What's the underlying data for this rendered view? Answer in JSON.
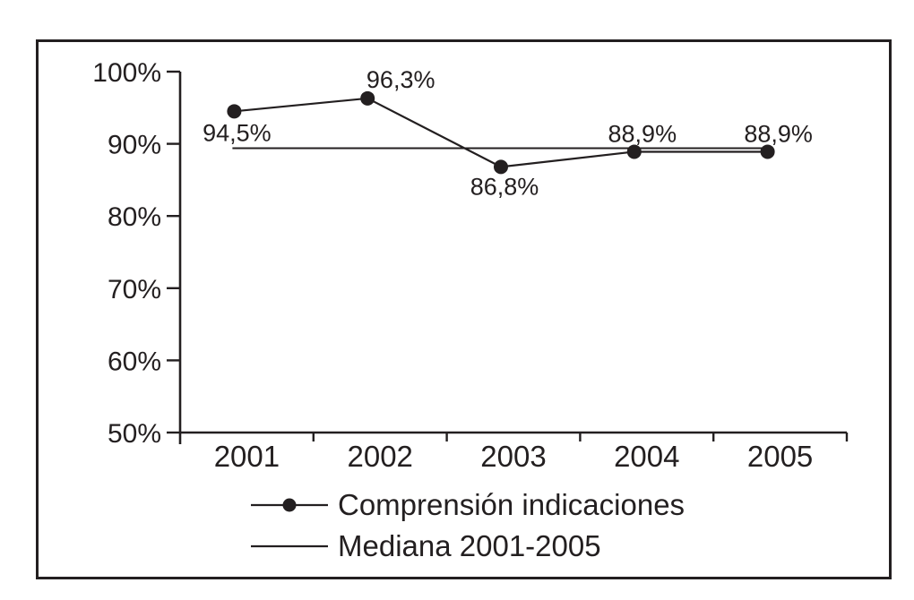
{
  "figure": {
    "background": "#ffffff",
    "ink_color": "#231f20",
    "title": ""
  },
  "chart_data": {
    "type": "line",
    "title": "",
    "categories": [
      "2001",
      "2002",
      "2003",
      "2004",
      "2005"
    ],
    "series": [
      {
        "name": "Comprensión indicaciones",
        "values": [
          94.5,
          96.3,
          86.8,
          88.9,
          88.9
        ],
        "point_labels": [
          "94,5%",
          "96,3%",
          "86,8%",
          "88,9%",
          "88,9%"
        ],
        "marker": "filled-circle",
        "color": "#231f20"
      },
      {
        "name": "Mediana 2001-2005",
        "type": "horizontal-line",
        "value": 88.9,
        "color": "#231f20"
      }
    ],
    "x_axis": {
      "tick_labels": [
        "2001",
        "2002",
        "2003",
        "2004",
        "2005"
      ]
    },
    "y_axis": {
      "min": 50,
      "max": 100,
      "tick_values": [
        50,
        60,
        70,
        80,
        90,
        100
      ],
      "tick_labels": [
        "50%",
        "60%",
        "70%",
        "80%",
        "90%",
        "100%"
      ]
    },
    "grid": false,
    "legend_position": "bottom-left",
    "legend": [
      "Comprensión indicaciones",
      "Mediana 2001-2005"
    ]
  }
}
